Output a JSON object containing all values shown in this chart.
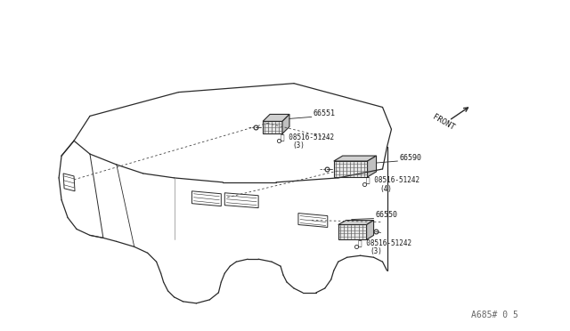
{
  "bg_color": "#ffffff",
  "line_color": "#2a2a2a",
  "text_color": "#1a1a1a",
  "watermark": "A685# 0 5",
  "front_label": "FRONT",
  "parts": [
    {
      "id": "66551",
      "part_num": "S)08516-51242",
      "qty": "(3)"
    },
    {
      "id": "66590",
      "part_num": "S)08516-51242",
      "qty": "(4)"
    },
    {
      "id": "66550",
      "part_num": "S)08516-51242",
      "qty": "(3)"
    }
  ]
}
